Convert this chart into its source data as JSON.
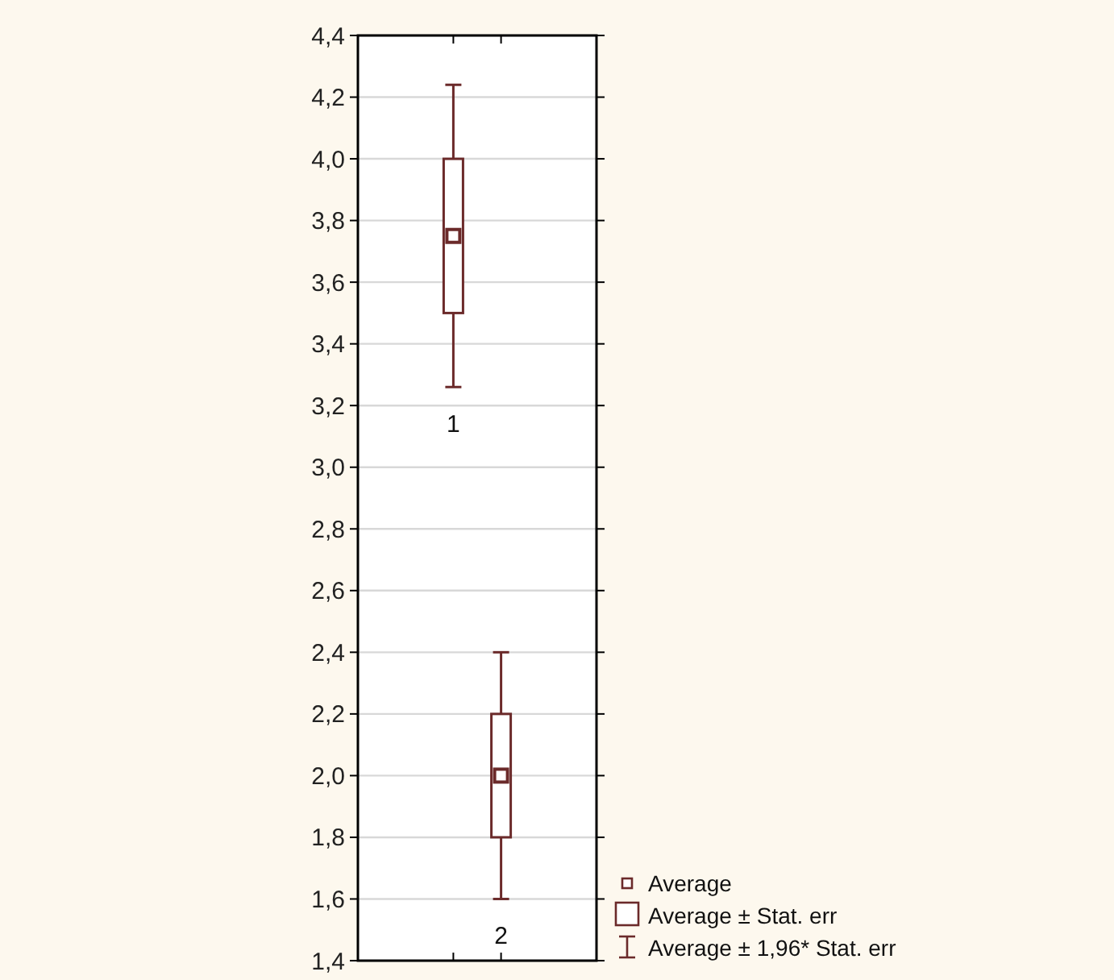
{
  "chart_data": {
    "type": "scatter",
    "categories": [
      "1",
      "2"
    ],
    "ylim": [
      1.4,
      4.4
    ],
    "yticks": [
      {
        "value": 1.4,
        "label": "1,4"
      },
      {
        "value": 1.6,
        "label": "1,6"
      },
      {
        "value": 1.8,
        "label": "1,8"
      },
      {
        "value": 2.0,
        "label": "2,0"
      },
      {
        "value": 2.2,
        "label": "2,2"
      },
      {
        "value": 2.4,
        "label": "2,4"
      },
      {
        "value": 2.6,
        "label": "2,6"
      },
      {
        "value": 2.8,
        "label": "2,8"
      },
      {
        "value": 3.0,
        "label": "3,0"
      },
      {
        "value": 3.2,
        "label": "3,2"
      },
      {
        "value": 3.4,
        "label": "3,4"
      },
      {
        "value": 3.6,
        "label": "3,6"
      },
      {
        "value": 3.8,
        "label": "3,8"
      },
      {
        "value": 4.0,
        "label": "4,0"
      },
      {
        "value": 4.2,
        "label": "4,2"
      },
      {
        "value": 4.4,
        "label": "4,4"
      }
    ],
    "grid": "y",
    "legend": "bottom right",
    "annotations": [
      "Average ± 1,96* Stat. err"
    ],
    "series": [
      {
        "name": "Average",
        "marker": "square",
        "color": "#6b2a2a",
        "values": [
          3.75,
          2.0
        ],
        "errors": [
          [
            3.26,
            4.24
          ],
          [
            1.6,
            2.4
          ]
        ]
      },
      {
        "name": "Average ± Stat. err",
        "type": "bar",
        "color": "#6b2a2a",
        "base": [
          3.5,
          1.8
        ],
        "values": [
          0.5,
          0.4
        ]
      }
    ]
  }
}
